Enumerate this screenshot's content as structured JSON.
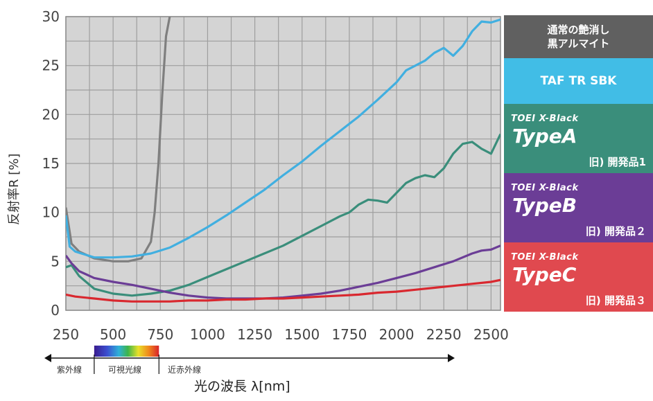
{
  "chart_data": {
    "type": "line",
    "xlabel": "光の波長 λ[nm]",
    "ylabel": "反射率R [%]",
    "xlim": [
      250,
      2550
    ],
    "ylim": [
      0,
      30
    ],
    "x_ticks": [
      250,
      500,
      750,
      1000,
      1250,
      1500,
      1750,
      2000,
      2250,
      2500
    ],
    "y_ticks": [
      0,
      5,
      10,
      15,
      20,
      25,
      30
    ],
    "grid": true,
    "legend_position": "right",
    "series": [
      {
        "name": "通常の艶消し黒アルマイト",
        "color": "#7f7f7f",
        "x": [
          250,
          280,
          320,
          400,
          500,
          580,
          650,
          700,
          720,
          740,
          760,
          780,
          800,
          810
        ],
        "y": [
          10.5,
          6.8,
          6.0,
          5.3,
          5.0,
          5.0,
          5.3,
          7.0,
          10.0,
          15.0,
          22.0,
          28.0,
          30.0,
          31.0
        ]
      },
      {
        "name": "TAF TR SBK",
        "color": "#41afe0",
        "x": [
          250,
          270,
          300,
          400,
          500,
          600,
          700,
          800,
          900,
          1000,
          1100,
          1200,
          1300,
          1400,
          1500,
          1600,
          1700,
          1800,
          1900,
          2000,
          2050,
          2100,
          2150,
          2200,
          2250,
          2300,
          2350,
          2400,
          2450,
          2500,
          2550
        ],
        "y": [
          9.7,
          6.5,
          6.0,
          5.4,
          5.4,
          5.5,
          5.8,
          6.4,
          7.4,
          8.5,
          9.7,
          11.0,
          12.3,
          13.8,
          15.2,
          16.8,
          18.3,
          19.8,
          21.5,
          23.3,
          24.5,
          25.0,
          25.5,
          26.3,
          26.8,
          26.0,
          27.0,
          28.5,
          29.5,
          29.4,
          29.7
        ]
      },
      {
        "name": "TOEI X-Black TypeA",
        "color": "#3a8e7b",
        "x": [
          250,
          280,
          320,
          400,
          500,
          600,
          700,
          800,
          900,
          1000,
          1100,
          1200,
          1300,
          1400,
          1500,
          1600,
          1700,
          1750,
          1800,
          1850,
          1900,
          1950,
          2000,
          2050,
          2100,
          2150,
          2200,
          2250,
          2300,
          2350,
          2400,
          2450,
          2500,
          2550
        ],
        "y": [
          4.4,
          4.6,
          3.5,
          2.2,
          1.7,
          1.5,
          1.7,
          2.0,
          2.6,
          3.4,
          4.2,
          5.0,
          5.8,
          6.6,
          7.6,
          8.6,
          9.6,
          10.0,
          10.8,
          11.3,
          11.2,
          11.0,
          12.0,
          13.0,
          13.5,
          13.8,
          13.6,
          14.5,
          16.0,
          17.0,
          17.2,
          16.5,
          16.0,
          18.0
        ]
      },
      {
        "name": "TOEI X-Black TypeB",
        "color": "#6b3d96",
        "x": [
          250,
          280,
          320,
          400,
          500,
          600,
          700,
          800,
          900,
          1000,
          1100,
          1200,
          1300,
          1400,
          1500,
          1600,
          1700,
          1800,
          1900,
          2000,
          2100,
          2200,
          2300,
          2400,
          2450,
          2500,
          2550
        ],
        "y": [
          5.6,
          4.8,
          4.0,
          3.3,
          2.9,
          2.6,
          2.2,
          1.8,
          1.5,
          1.3,
          1.2,
          1.2,
          1.2,
          1.3,
          1.5,
          1.7,
          2.0,
          2.4,
          2.8,
          3.3,
          3.8,
          4.4,
          5.0,
          5.8,
          6.1,
          6.2,
          6.6
        ]
      },
      {
        "name": "TOEI X-Black TypeC",
        "color": "#d9282f",
        "x": [
          250,
          300,
          400,
          500,
          600,
          700,
          800,
          900,
          1000,
          1100,
          1200,
          1300,
          1400,
          1500,
          1600,
          1700,
          1800,
          1900,
          2000,
          2100,
          2200,
          2300,
          2400,
          2500,
          2550
        ],
        "y": [
          1.6,
          1.4,
          1.2,
          1.0,
          0.9,
          0.9,
          0.9,
          1.0,
          1.0,
          1.1,
          1.1,
          1.2,
          1.2,
          1.3,
          1.4,
          1.5,
          1.6,
          1.8,
          1.9,
          2.1,
          2.3,
          2.5,
          2.7,
          2.9,
          3.1
        ]
      }
    ]
  },
  "legend": [
    {
      "line1": "通常の艶消し",
      "line2": "黒アルマイト",
      "bg": "#606060"
    },
    {
      "label": "TAF TR SBK",
      "bg": "#41bde6"
    },
    {
      "brand": "TOEI X-Black",
      "type": "TypeA",
      "note": "旧) 開発品1",
      "bg": "#3a8e7b"
    },
    {
      "brand": "TOEI X-Black",
      "type": "TypeB",
      "note": "旧) 開発品２",
      "bg": "#6b3d96"
    },
    {
      "brand": "TOEI X-Black",
      "type": "TypeC",
      "note": "旧) 開発品３",
      "bg": "#e0494f"
    }
  ],
  "regions": {
    "uv": "紫外線",
    "visible": "可視光線",
    "nir": "近赤外線"
  },
  "colors": {
    "plot_bg": "#d4d4d4",
    "grid": "#9e9e9e",
    "tick_text": "#444444"
  }
}
